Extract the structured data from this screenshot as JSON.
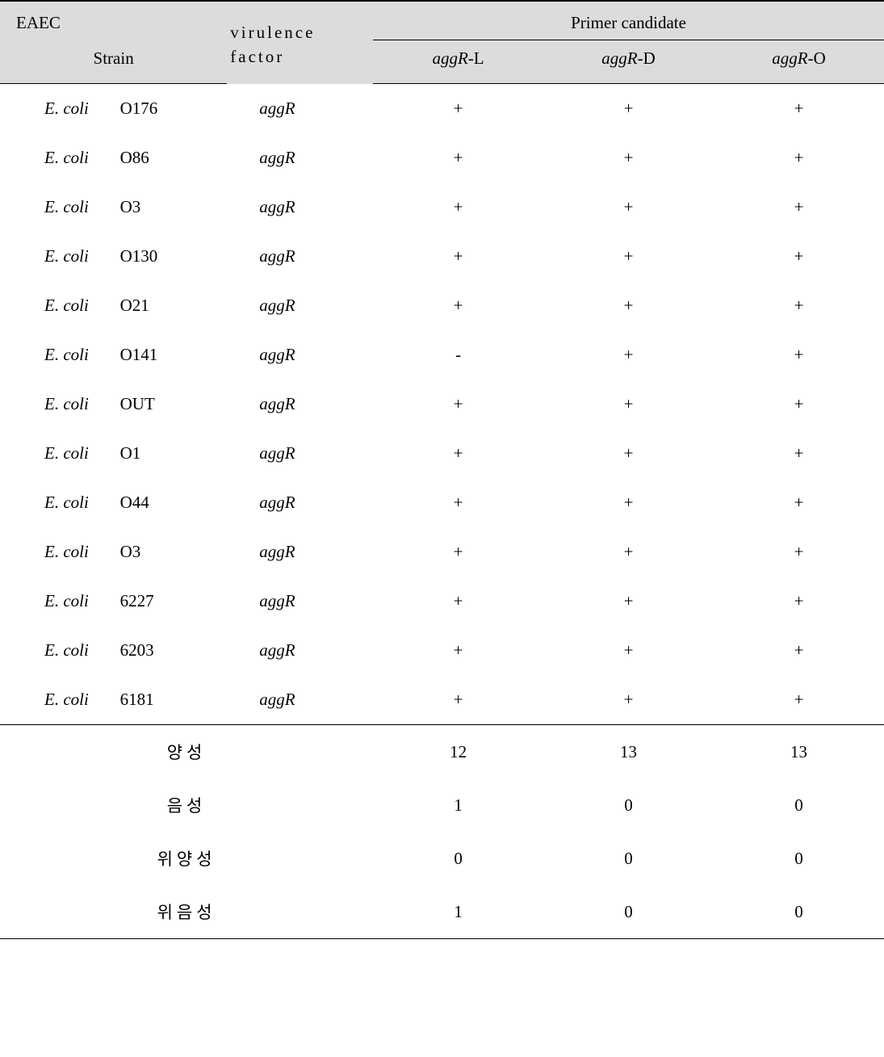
{
  "table": {
    "header": {
      "group_label": "EAEC",
      "strain_label": "Strain",
      "factor_label": "virulence factor",
      "primer_group_label": "Primer candidate",
      "primer_cols": [
        {
          "prefix": "aggR",
          "suffix": "-L"
        },
        {
          "prefix": "aggR",
          "suffix": "-D"
        },
        {
          "prefix": "aggR",
          "suffix": "-O"
        }
      ]
    },
    "rows": [
      {
        "species": "E. coli",
        "serotype": "O176",
        "factor": "aggR",
        "p1": "+",
        "p2": "+",
        "p3": "+"
      },
      {
        "species": "E. coli",
        "serotype": "O86",
        "factor": "aggR",
        "p1": "+",
        "p2": "+",
        "p3": "+"
      },
      {
        "species": "E. coli",
        "serotype": "O3",
        "factor": "aggR",
        "p1": "+",
        "p2": "+",
        "p3": "+"
      },
      {
        "species": "E. coli",
        "serotype": "O130",
        "factor": "aggR",
        "p1": "+",
        "p2": "+",
        "p3": "+"
      },
      {
        "species": "E. coli",
        "serotype": "O21",
        "factor": "aggR",
        "p1": "+",
        "p2": "+",
        "p3": "+"
      },
      {
        "species": "E. coli",
        "serotype": "O141",
        "factor": "aggR",
        "p1": "-",
        "p2": "+",
        "p3": "+"
      },
      {
        "species": "E. coli",
        "serotype": "OUT",
        "factor": "aggR",
        "p1": "+",
        "p2": "+",
        "p3": "+"
      },
      {
        "species": "E. coli",
        "serotype": "O1",
        "factor": "aggR",
        "p1": "+",
        "p2": "+",
        "p3": "+"
      },
      {
        "species": "E. coli",
        "serotype": "O44",
        "factor": "aggR",
        "p1": "+",
        "p2": "+",
        "p3": "+"
      },
      {
        "species": "E. coli",
        "serotype": "O3",
        "factor": "aggR",
        "p1": "+",
        "p2": "+",
        "p3": "+"
      },
      {
        "species": "E. coli",
        "serotype": "6227",
        "factor": "aggR",
        "p1": "+",
        "p2": "+",
        "p3": "+"
      },
      {
        "species": "E. coli",
        "serotype": "6203",
        "factor": "aggR",
        "p1": "+",
        "p2": "+",
        "p3": "+"
      },
      {
        "species": "E. coli",
        "serotype": "6181",
        "factor": "aggR",
        "p1": "+",
        "p2": "+",
        "p3": "+"
      }
    ],
    "summary": [
      {
        "label": "양성",
        "p1": "12",
        "p2": "13",
        "p3": "13"
      },
      {
        "label": "음성",
        "p1": "1",
        "p2": "0",
        "p3": "0"
      },
      {
        "label": "위양성",
        "p1": "0",
        "p2": "0",
        "p3": "0"
      },
      {
        "label": "위음성",
        "p1": "1",
        "p2": "0",
        "p3": "0"
      }
    ]
  },
  "colors": {
    "header_bg": "#dcdcdc",
    "border": "#000000",
    "background": "#ffffff",
    "text": "#000000"
  },
  "typography": {
    "font_family": "Times New Roman, serif",
    "base_size_pt": 16
  }
}
